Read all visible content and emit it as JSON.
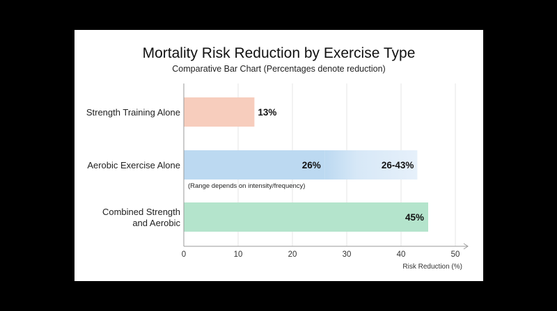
{
  "chart_data": {
    "type": "bar",
    "orientation": "horizontal",
    "title": "Mortality Risk Reduction by Exercise Type",
    "subtitle": "Comparative Bar Chart (Percentages denote reduction)",
    "xlabel": "Risk Reduction (%)",
    "ylabel": "",
    "xlim": [
      0,
      50
    ],
    "xticks": [
      0,
      10,
      20,
      30,
      40,
      50
    ],
    "grid": "vertical",
    "legend": "none",
    "categories": [
      "Strength Training Alone",
      "Aerobic Exercise Alone",
      "Combined Strength and Aerobic"
    ],
    "category_lines": [
      [
        "Strength Training Alone"
      ],
      [
        "Aerobic Exercise Alone"
      ],
      [
        "Combined Strength",
        "and Aerobic"
      ]
    ],
    "bars": [
      {
        "category": "Strength Training Alone",
        "value": 13,
        "label": "13%",
        "color": "#f7cdbd"
      },
      {
        "category": "Aerobic Exercise Alone",
        "value": 26,
        "range_max": 43,
        "label": "26%",
        "range_label": "26-43%",
        "note": "(Range depends on intensity/frequency)",
        "color": "#bcd9f1",
        "range_color": "#d7e8f7"
      },
      {
        "category": "Combined Strength and Aerobic",
        "value": 45,
        "label": "45%",
        "color": "#b4e4cc"
      }
    ]
  }
}
